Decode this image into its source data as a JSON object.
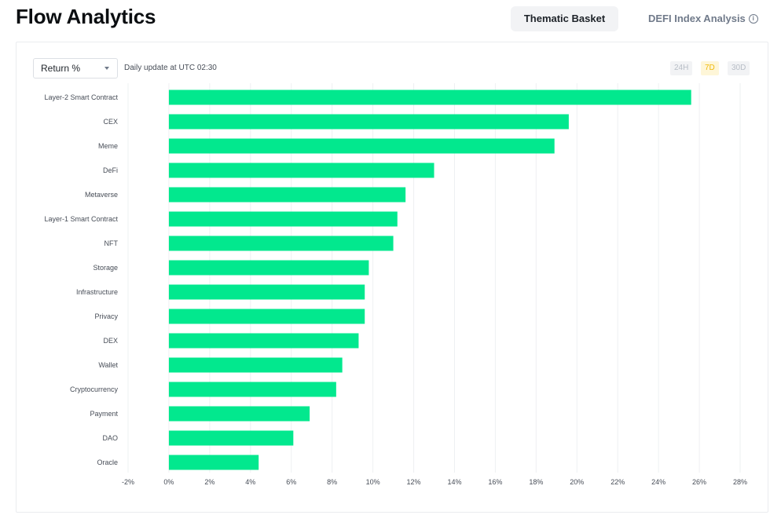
{
  "header": {
    "title": "Flow Analytics",
    "tabs": [
      {
        "label": "Thematic Basket",
        "active": true
      },
      {
        "label": "DEFI Index Analysis",
        "active": false
      }
    ],
    "info_icon": "info-circle-icon"
  },
  "controls": {
    "metric_select": {
      "value": "Return %"
    },
    "update_note": "Daily update at UTC 02:30",
    "ranges": [
      {
        "label": "24H",
        "active": false
      },
      {
        "label": "7D",
        "active": true
      },
      {
        "label": "30D",
        "active": false
      }
    ]
  },
  "colors": {
    "bar": "#02e88e",
    "grid": "#eef0f2",
    "active_range_bg": "#fef6d8",
    "active_range_text": "#f0b90b"
  },
  "chart_data": {
    "type": "bar",
    "orientation": "horizontal",
    "categories": [
      "Layer-2 Smart Contract",
      "CEX",
      "Meme",
      "DeFi",
      "Metaverse",
      "Layer-1 Smart Contract",
      "NFT",
      "Storage",
      "Infrastructure",
      "Privacy",
      "DEX",
      "Wallet",
      "Cryptocurrency",
      "Payment",
      "DAO",
      "Oracle"
    ],
    "values": [
      25.6,
      19.6,
      18.9,
      13.0,
      11.6,
      11.2,
      11.0,
      9.8,
      9.6,
      9.6,
      9.3,
      8.5,
      8.2,
      6.9,
      6.1,
      4.4
    ],
    "xlim": [
      -2,
      28
    ],
    "xticks": [
      "-2%",
      "0%",
      "2%",
      "4%",
      "6%",
      "8%",
      "10%",
      "12%",
      "14%",
      "16%",
      "18%",
      "20%",
      "22%",
      "24%",
      "26%",
      "28%"
    ],
    "grid": true,
    "legend": "none"
  }
}
